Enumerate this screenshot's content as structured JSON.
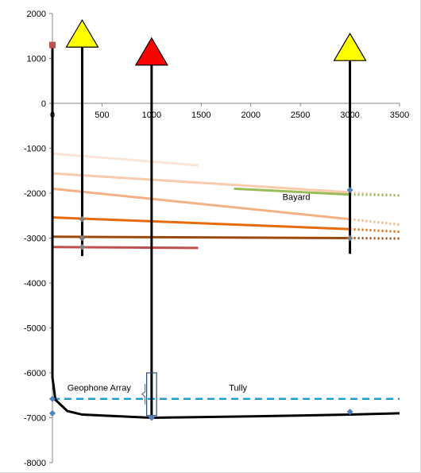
{
  "chart_data": {
    "type": "line",
    "title": "",
    "xlabel": "",
    "ylabel": "",
    "xlim": [
      0,
      3500
    ],
    "ylim": [
      -8000,
      2000
    ],
    "x_ticks": [
      0,
      500,
      1000,
      1500,
      2000,
      2500,
      3000,
      3500
    ],
    "x_tick_labels": [
      "0",
      "500",
      "1000",
      "1500",
      "2000",
      "2500",
      "3000",
      "3500"
    ],
    "y_ticks": [
      2000,
      1000,
      0,
      -1000,
      -2000,
      -3000,
      -4000,
      -5000,
      -6000,
      -7000,
      -8000
    ],
    "y_tick_labels": [
      "2000",
      "1000",
      "0",
      "-1000",
      "-2000",
      "-3000",
      "-4000",
      "-5000",
      "-6000",
      "-7000",
      "-8000"
    ],
    "grid": false,
    "legend": "none",
    "wells": [
      {
        "x": 300,
        "top": 1400,
        "bottom": -3400,
        "marker_color": "#ffff00",
        "marker_y": 1500
      },
      {
        "x": 1000,
        "top": 1000,
        "bottom": -7000,
        "marker_color": "#ff0000",
        "marker_y": 1100
      },
      {
        "x": 3000,
        "top": 1100,
        "bottom": -3350,
        "marker_color": "#ffff00",
        "marker_y": 1200
      }
    ],
    "horizontal_well": {
      "color": "#000000",
      "points": [
        [
          0,
          1300
        ],
        [
          0,
          -6100
        ],
        [
          30,
          -6600
        ],
        [
          150,
          -6850
        ],
        [
          300,
          -6930
        ],
        [
          1000,
          -7000
        ],
        [
          2000,
          -6970
        ],
        [
          3000,
          -6930
        ],
        [
          3500,
          -6900
        ]
      ]
    },
    "survey_start": {
      "x": 0,
      "y": 1300,
      "color": "#c0504d"
    },
    "horizons": [
      {
        "color": "#fbe5d6",
        "x1": 0,
        "y1": -1120,
        "x2": 1470,
        "y2": -1380,
        "x3": null,
        "y3": null
      },
      {
        "color": "#f8cbad",
        "x1": 0,
        "y1": -1560,
        "x2": 3000,
        "y2": -1980,
        "x3": 3500,
        "y3": -2050
      },
      {
        "color": "#f4b183",
        "x1": 0,
        "y1": -1900,
        "x2": 3000,
        "y2": -2580,
        "x3": 3500,
        "y3": -2700
      },
      {
        "color": "#e46c0a",
        "x1": 0,
        "y1": -2540,
        "x2": 3000,
        "y2": -2800,
        "x3": 3500,
        "y3": -2860
      },
      {
        "color": "#9c4a0c",
        "x1": 0,
        "y1": -2970,
        "x2": 3000,
        "y2": -3000,
        "x3": 3500,
        "y3": -3010
      },
      {
        "color": "#c0504d",
        "x1": 0,
        "y1": -3200,
        "x2": 1470,
        "y2": -3220,
        "x3": null,
        "y3": null
      },
      {
        "color": "#9bbb59",
        "x1": 1830,
        "y1": -1900,
        "x2": 3000,
        "y2": -2030,
        "x3": 3500,
        "y3": -2050
      }
    ],
    "geophone_array": {
      "color": "#1f9ed6",
      "y": -6580,
      "x_start": 0,
      "x_end": 3500,
      "bracket_x": [
        950,
        1050
      ],
      "bracket_y": [
        -6000,
        -6950
      ],
      "label": "Geophone Array"
    },
    "markers": [
      {
        "x": 0,
        "y": -6580,
        "color": "#4f81bd"
      },
      {
        "x": 0,
        "y": -6900,
        "color": "#4f81bd"
      },
      {
        "x": 3000,
        "y": -6870,
        "color": "#4f81bd"
      },
      {
        "x": 3000,
        "y": -1930,
        "color": "#4f81bd"
      },
      {
        "x": 300,
        "y": -2580,
        "color": "#7f7f7f"
      },
      {
        "x": 300,
        "y": -3000,
        "color": "#7f7f7f"
      },
      {
        "x": 300,
        "y": -3200,
        "color": "#7f7f7f"
      },
      {
        "x": 3000,
        "y": -3000,
        "color": "#7f7f7f"
      },
      {
        "x": 1000,
        "y": -7000,
        "color": "#4f81bd"
      }
    ],
    "annotations": [
      {
        "text": "Bayard",
        "x": 2320,
        "y": -2150
      },
      {
        "text": "Tully",
        "x": 1780,
        "y": -6400
      }
    ]
  }
}
